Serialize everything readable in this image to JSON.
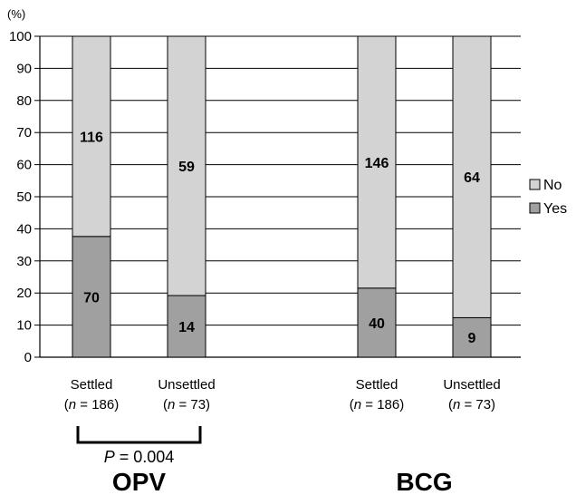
{
  "chart_data": {
    "type": "bar",
    "stacked": true,
    "ylabel_unit": "(%)",
    "ylim": [
      0,
      100
    ],
    "yticks": [
      0,
      10,
      20,
      30,
      40,
      50,
      60,
      70,
      80,
      90,
      100
    ],
    "grid": "horizontal",
    "legend_position": "right",
    "colors": {
      "No": "#d3d3d3",
      "Yes": "#a0a0a0"
    },
    "groups": [
      {
        "name": "OPV",
        "bars": [
          {
            "label": "Settled",
            "n_text": "= 186",
            "yes_pct": 37.6,
            "yes_count": "70",
            "no_count": "116"
          },
          {
            "label": "Unsettled",
            "n_text": "= 73",
            "yes_pct": 19.2,
            "yes_count": "14",
            "no_count": "59"
          }
        ],
        "annotation": {
          "p_symbol": "P",
          "p_text": "= 0.004"
        }
      },
      {
        "name": "BCG",
        "bars": [
          {
            "label": "Settled",
            "n_text": "= 186",
            "yes_pct": 21.5,
            "yes_count": "40",
            "no_count": "146"
          },
          {
            "label": "Unsettled",
            "n_text": "= 73",
            "yes_pct": 12.3,
            "yes_count": "9",
            "no_count": "64"
          }
        ]
      }
    ],
    "legend": [
      "No",
      "Yes"
    ],
    "n_symbol": "n"
  }
}
